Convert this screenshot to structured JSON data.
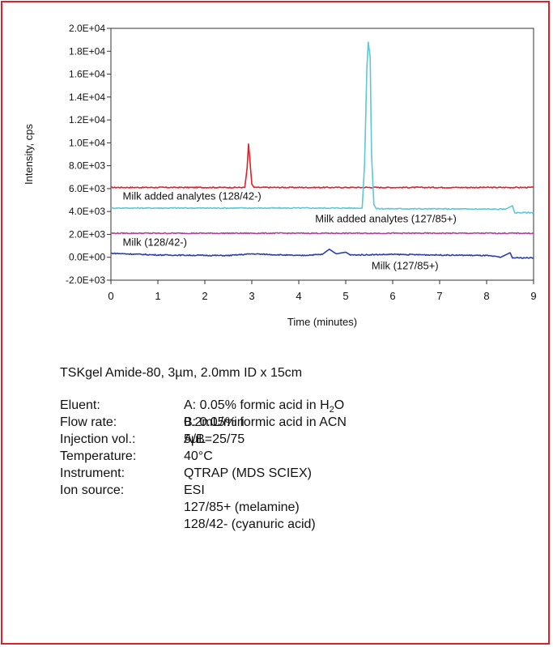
{
  "chart_data": {
    "type": "line",
    "title": "",
    "xlabel": "Time (minutes)",
    "ylabel": "Intensity, cps",
    "xlim": [
      0,
      9
    ],
    "ylim": [
      -2000,
      20000
    ],
    "x_ticks": [
      "0",
      "1",
      "2",
      "3",
      "4",
      "5",
      "6",
      "7",
      "8",
      "9"
    ],
    "y_ticks": [
      {
        "value": 20000,
        "label": "2.0E+04"
      },
      {
        "value": 18000,
        "label": "1.8E+04"
      },
      {
        "value": 16000,
        "label": "1.6E+04"
      },
      {
        "value": 14000,
        "label": "1.4E+04"
      },
      {
        "value": 12000,
        "label": "1.2E+04"
      },
      {
        "value": 10000,
        "label": "1.0E+04"
      },
      {
        "value": 8000,
        "label": "8.0E+03"
      },
      {
        "value": 6000,
        "label": "6.0E+03"
      },
      {
        "value": 4000,
        "label": "4.0E+03"
      },
      {
        "value": 2000,
        "label": "2.0E+03"
      },
      {
        "value": 0,
        "label": "0.0E+00"
      },
      {
        "value": -2000,
        "label": "-2.0E+03"
      }
    ],
    "grid": false,
    "series": [
      {
        "name": "Milk added analytes (128/42-)",
        "color": "#e0202a",
        "x": [
          0.0,
          2.85,
          2.9,
          2.93,
          2.96,
          3.0,
          3.05,
          9.0
        ],
        "y": [
          6100,
          6100,
          7800,
          9900,
          8500,
          6400,
          6100,
          6100
        ]
      },
      {
        "name": "Milk added analytes (127/85+)",
        "color": "#5cc7d6",
        "x": [
          0.0,
          5.35,
          5.4,
          5.45,
          5.48,
          5.52,
          5.55,
          5.6,
          5.65,
          8.4,
          8.55,
          8.6,
          9.0
        ],
        "y": [
          4300,
          4300,
          8000,
          16500,
          18800,
          17500,
          9000,
          4600,
          4250,
          4200,
          4500,
          3900,
          3900
        ]
      },
      {
        "name": "Milk (128/42-)",
        "color": "#b43c9a",
        "x": [
          0.0,
          9.0
        ],
        "y": [
          2100,
          2100
        ]
      },
      {
        "name": "Milk (127/85+)",
        "color": "#2b3fa8",
        "x": [
          0.0,
          1.0,
          2.5,
          3.0,
          4.0,
          4.5,
          4.65,
          4.8,
          5.0,
          5.1,
          6.0,
          7.0,
          8.0,
          8.3,
          8.5,
          8.55,
          9.0
        ],
        "y": [
          350,
          200,
          150,
          300,
          150,
          250,
          700,
          300,
          450,
          200,
          250,
          200,
          150,
          0,
          400,
          -50,
          -50
        ]
      }
    ],
    "annotations": [
      {
        "text": "Milk added analytes  (128/42-)",
        "x": 0.25,
        "y": 5050
      },
      {
        "text": "Milk added analytes  (127/85+)",
        "x": 4.35,
        "y": 3050
      },
      {
        "text": "Milk  (128/42-)",
        "x": 0.25,
        "y": 1000
      },
      {
        "text": "Milk  (127/85+)",
        "x": 5.55,
        "y": -1050
      }
    ]
  },
  "column": {
    "title": "TSKgel Amide-80, 3µm, 2.0mm ID x 15cm"
  },
  "conditions": {
    "eluent_label": "Eluent:",
    "eluent_a_prefix": "A: 0.05% formic acid in H",
    "eluent_a_sub": "2",
    "eluent_a_suffix": "O",
    "eluent_b": "B: 0.05% formic acid in ACN",
    "eluent_ratio": "A/B=25/75",
    "flow_label": "Flow rate:",
    "flow_value": "0.2mL/min",
    "injection_label": "Injection vol.:",
    "injection_value": "5µL",
    "temperature_label": "Temperature:",
    "temperature_value": "40°C",
    "instrument_label": "Instrument:",
    "instrument_value": "QTRAP (MDS SCIEX)",
    "ion_source_label": "Ion source:",
    "ion_source_value": "ESI",
    "transition_1": "127/85+ (melamine)",
    "transition_2": "128/42- (cyanuric acid)"
  }
}
